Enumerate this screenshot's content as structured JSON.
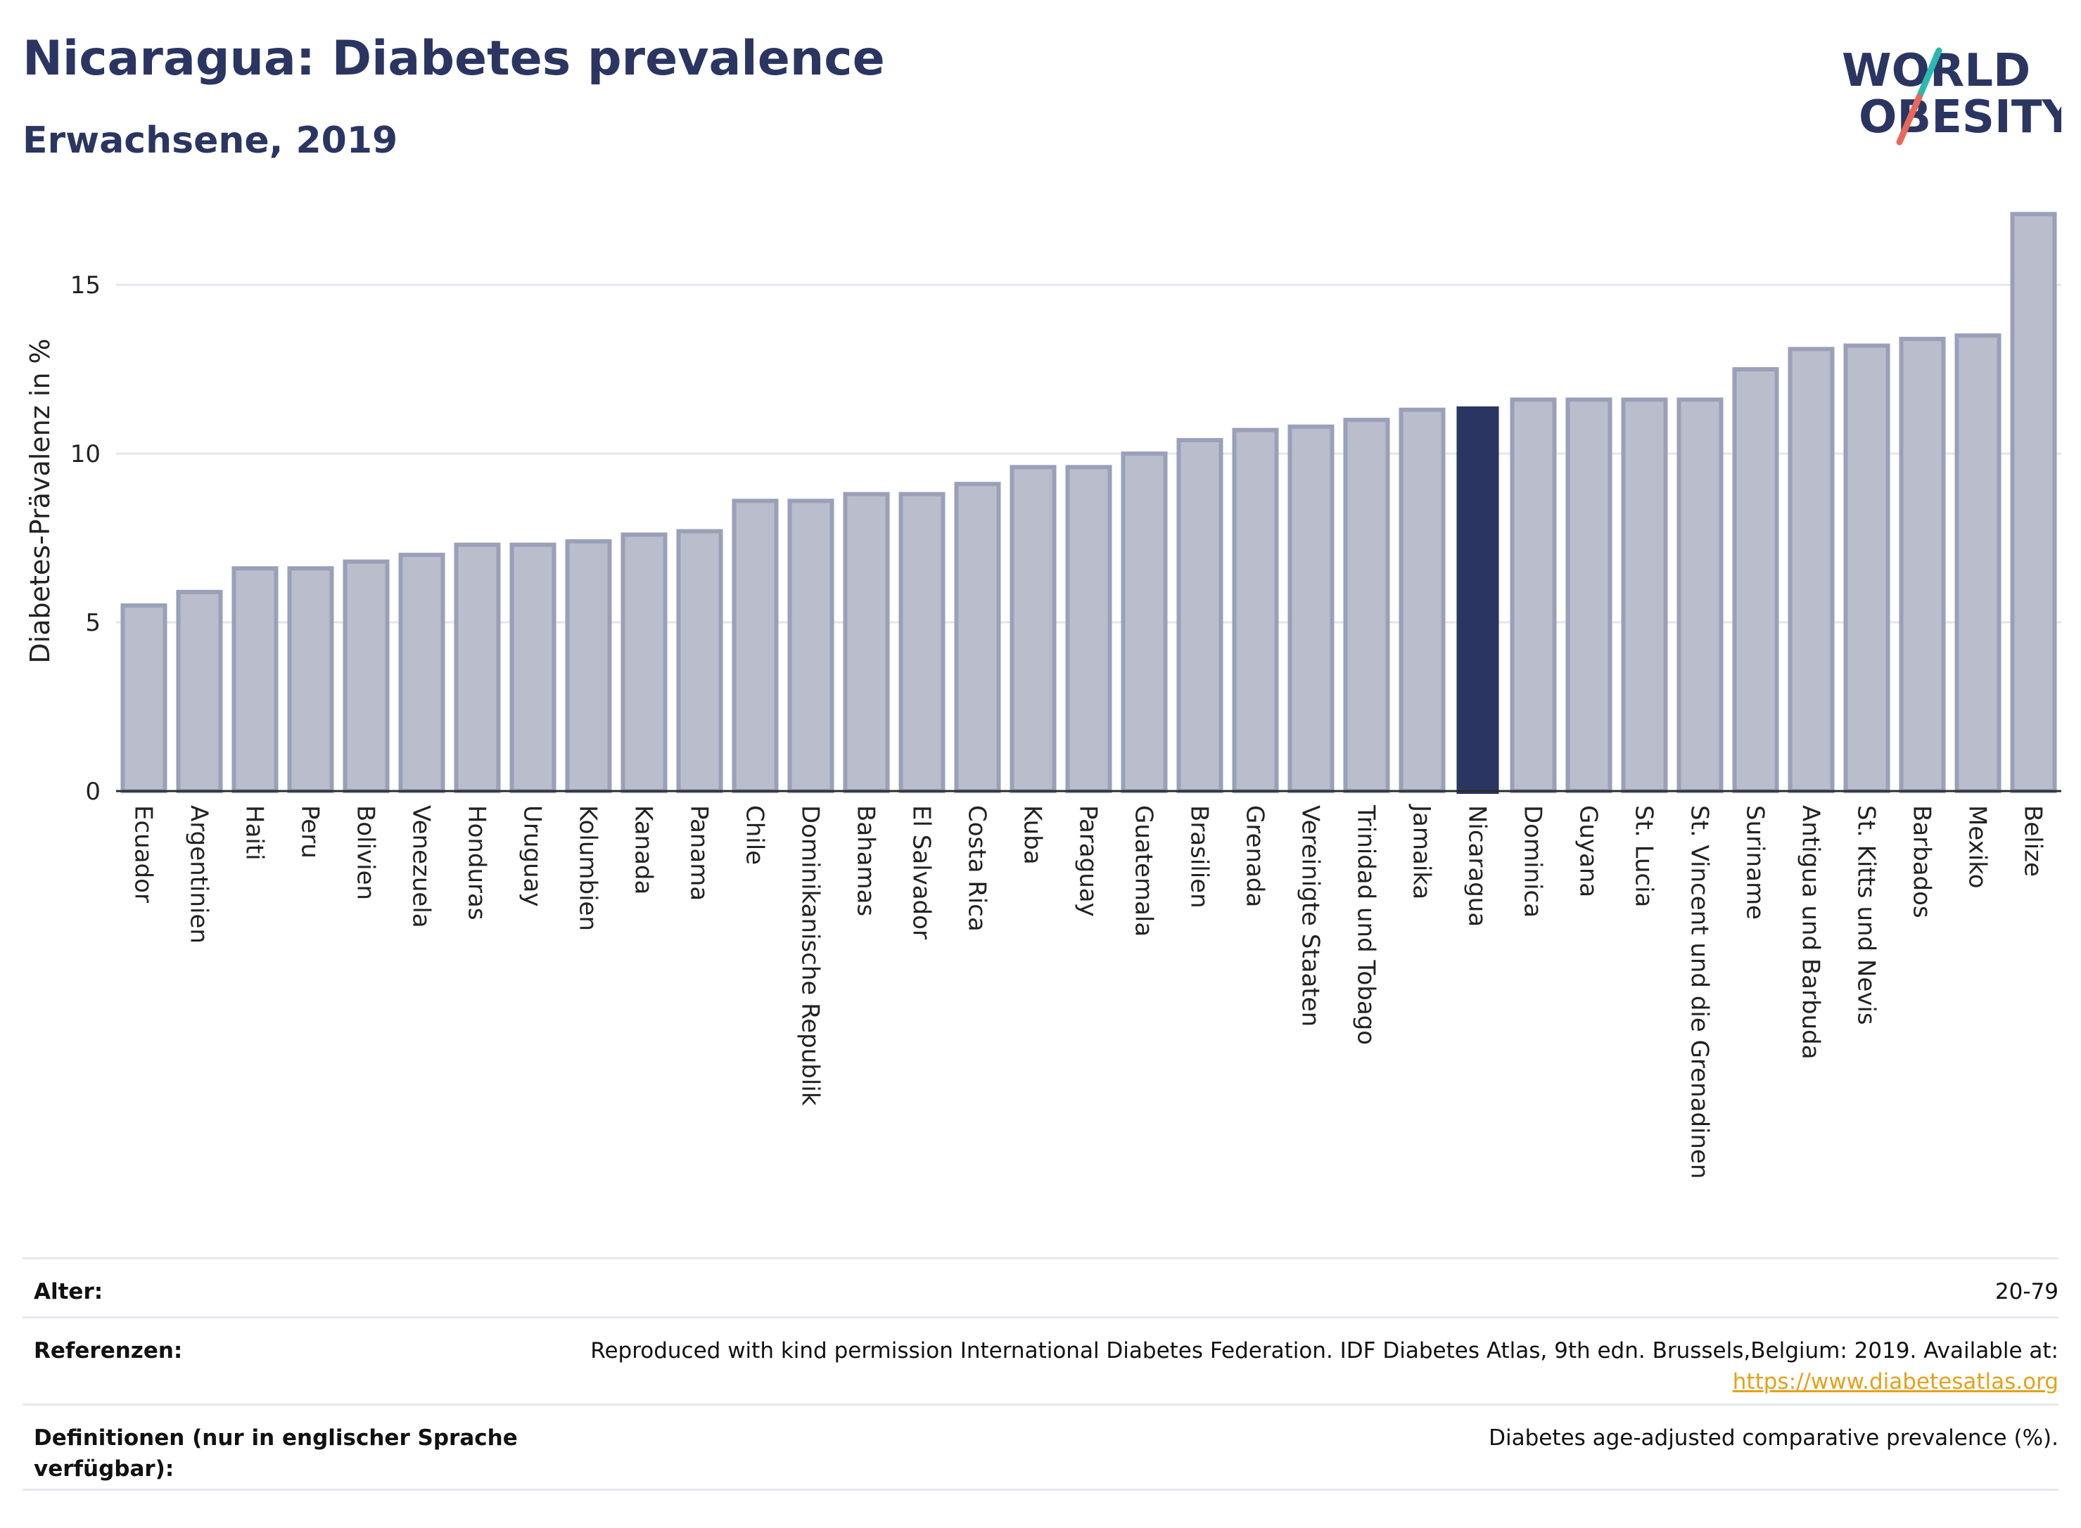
{
  "header": {
    "title": "Nicaragua: Diabetes prevalence",
    "subtitle": "Erwachsene, 2019"
  },
  "logo": {
    "line1": "WORLD",
    "line2": "OBESITY",
    "slash_top_color": "#2bb8b0",
    "slash_bottom_color": "#e8675a",
    "text_color": "#2b3561"
  },
  "chart_data": {
    "type": "bar",
    "title": "Nicaragua: Diabetes prevalence",
    "subtitle": "Erwachsene, 2019",
    "ylabel": "Diabetes-Prävalenz in %",
    "xlabel": "",
    "ylim": [
      0,
      17.4
    ],
    "yticks": [
      0,
      5,
      10,
      15
    ],
    "grid": true,
    "highlight": "Nicaragua",
    "bar_color": "#b9bdcc",
    "bar_edge_color": "#9aa0b8",
    "highlight_color": "#2b3561",
    "categories": [
      "Ecuador",
      "Argentinien",
      "Haiti",
      "Peru",
      "Bolivien",
      "Venezuela",
      "Honduras",
      "Uruguay",
      "Kolumbien",
      "Kanada",
      "Panama",
      "Chile",
      "Dominikanische Republik",
      "Bahamas",
      "El Salvador",
      "Costa Rica",
      "Kuba",
      "Paraguay",
      "Guatemala",
      "Brasilien",
      "Grenada",
      "Vereinigte Staaten",
      "Trinidad und Tobago",
      "Jamaika",
      "Nicaragua",
      "Dominica",
      "Guyana",
      "St. Lucia",
      "St. Vincent und die Grenadinen",
      "Suriname",
      "Antigua und Barbuda",
      "St. Kitts und Nevis",
      "Barbados",
      "Mexiko",
      "Belize"
    ],
    "values": [
      5.5,
      5.9,
      6.6,
      6.6,
      6.8,
      7.0,
      7.3,
      7.3,
      7.4,
      7.6,
      7.7,
      8.6,
      8.6,
      8.8,
      8.8,
      9.1,
      9.6,
      9.6,
      10.0,
      10.4,
      10.7,
      10.8,
      11.0,
      11.3,
      11.4,
      11.6,
      11.6,
      11.6,
      11.6,
      12.5,
      13.1,
      13.2,
      13.4,
      13.5,
      17.1
    ]
  },
  "meta": {
    "rows": [
      {
        "label": "Alter:",
        "value": "20-79"
      },
      {
        "label": "Referenzen:",
        "value": "Reproduced with kind permission International Diabetes Federation. IDF Diabetes Atlas, 9th edn. Brussels,Belgium: 2019. Available at:",
        "link": "https://www.diabetesatlas.org"
      },
      {
        "label": "Definitionen (nur in englischer Sprache verfügbar):",
        "value": "Diabetes age-adjusted comparative prevalence (%)."
      }
    ]
  }
}
